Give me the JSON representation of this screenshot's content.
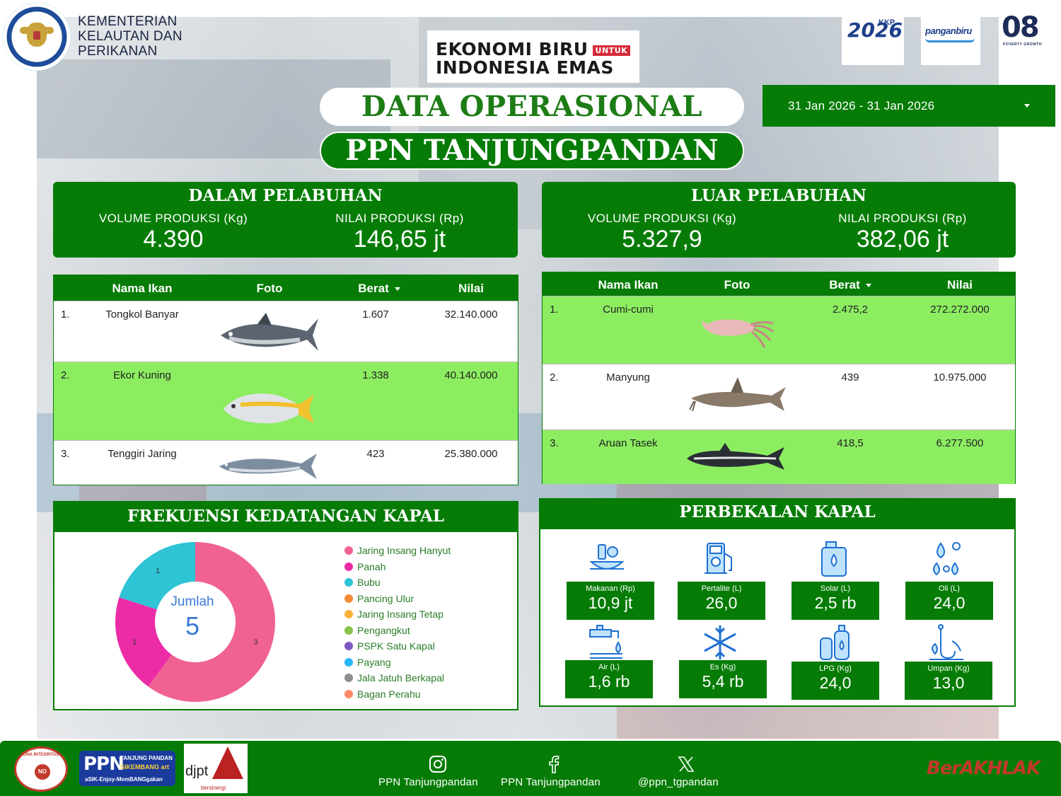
{
  "header": {
    "ministry": [
      "KEMENTERIAN",
      "KELAUTAN DAN",
      "PERIKANAN"
    ],
    "ekonomi_line1": "EKONOMI BIRU",
    "ekonomi_untuk": "UNTUK",
    "ekonomi_line2": "INDONESIA EMAS",
    "logo_kkp2026_year": "2026",
    "logo_kkp2026_badge": "KKP",
    "logo_pangan": "panganbiru",
    "logo_08": "08",
    "logo_08_sub": "POVERTY   GROWTH",
    "title": "DATA OPERASIONAL",
    "subtitle": "PPN TANJUNGPANDAN",
    "date_range": "31 Jan 2026 - 31 Jan 2026"
  },
  "dalam": {
    "title": "DALAM PELABUHAN",
    "vol_label": "VOLUME PRODUKSI (Kg)",
    "vol_value": "4.390",
    "nilai_label": "NILAI PRODUKSI (Rp)",
    "nilai_value": "146,65 jt"
  },
  "luar": {
    "title": "LUAR PELABUHAN",
    "vol_label": "VOLUME PRODUKSI (Kg)",
    "vol_value": "5.327,9",
    "nilai_label": "NILAI PRODUKSI (Rp)",
    "nilai_value": "382,06 jt"
  },
  "table_headers": {
    "nama": "Nama Ikan",
    "foto": "Foto",
    "berat": "Berat",
    "nilai": "Nilai"
  },
  "dalam_rows": [
    {
      "no": "1.",
      "nama": "Tongkol Banyar",
      "berat": "1.607",
      "nilai": "32.140.000"
    },
    {
      "no": "2.",
      "nama": "Ekor Kuning",
      "berat": "1.338",
      "nilai": "40.140.000"
    },
    {
      "no": "3.",
      "nama": "Tenggiri Jaring",
      "berat": "423",
      "nilai": "25.380.000"
    }
  ],
  "luar_rows": [
    {
      "no": "1.",
      "nama": "Cumi-cumi",
      "berat": "2.475,2",
      "nilai": "272.272.000"
    },
    {
      "no": "2.",
      "nama": "Manyung",
      "berat": "439",
      "nilai": "10.975.000"
    },
    {
      "no": "3.",
      "nama": "Aruan Tasek",
      "berat": "418,5",
      "nilai": "6.277.500"
    }
  ],
  "frekuensi": {
    "title": "FREKUENSI KEDATANGAN KAPAL",
    "center_label": "Jumlah",
    "center_value": "5",
    "legend": [
      {
        "label": "Jaring Insang Hanyut",
        "color": "#f06292"
      },
      {
        "label": "Panah",
        "color": "#ec2ba7"
      },
      {
        "label": "Bubu",
        "color": "#2ec4d6"
      },
      {
        "label": "Pancing Ulur",
        "color": "#f58a34"
      },
      {
        "label": "Jaring Insang Tetap",
        "color": "#fbb13c"
      },
      {
        "label": "Pengangkut",
        "color": "#8bc34a"
      },
      {
        "label": "PSPK Satu Kapal",
        "color": "#7e57c2"
      },
      {
        "label": "Payang",
        "color": "#29b6f6"
      },
      {
        "label": "Jala Jatuh Berkapal",
        "color": "#8d8d8d"
      },
      {
        "label": "Bagan Perahu",
        "color": "#ff8a65"
      }
    ]
  },
  "chart_data": {
    "type": "pie",
    "categories": [
      "Jaring Insang Hanyut",
      "Panah",
      "Bubu"
    ],
    "values": [
      3,
      1,
      1
    ],
    "total": 5
  },
  "perbekalan": {
    "title": "PERBEKALAN KAPAL",
    "items": [
      {
        "label": "Makanan (Rp)",
        "value": "10,9 jt",
        "icon": "food-icon"
      },
      {
        "label": "Pertalite (L)",
        "value": "26,0",
        "icon": "fuel-pump-icon"
      },
      {
        "label": "Solar (L)",
        "value": "2,5 rb",
        "icon": "jerrycan-icon"
      },
      {
        "label": "Oli (L)",
        "value": "24,0",
        "icon": "oil-drops-icon"
      },
      {
        "label": "Air (L)",
        "value": "1,6 rb",
        "icon": "water-tap-icon"
      },
      {
        "label": "Es (Kg)",
        "value": "5,4 rb",
        "icon": "snowflake-icon"
      },
      {
        "label": "LPG (Kg)",
        "value": "24,0",
        "icon": "lpg-icon"
      },
      {
        "label": "Umpan (Kg)",
        "value": "13,0",
        "icon": "bait-icon"
      }
    ]
  },
  "footer": {
    "instagram": "PPN Tanjungpandan",
    "facebook": "PPN Tanjungpandan",
    "x": "@ppn_tgpandan",
    "zona": "ZONA INTEGRITAS",
    "ppn_a": "PPN",
    "ppn_b": "TANJUNG PANDAN",
    "ppn_c": "SIKEMBANG art",
    "ppn_d": "aSIK-Enjoy-MemBANGgakan",
    "djpt": "djpt",
    "djpt_sub": "bersinergi",
    "berakhlak": "BerAKHLAK"
  }
}
